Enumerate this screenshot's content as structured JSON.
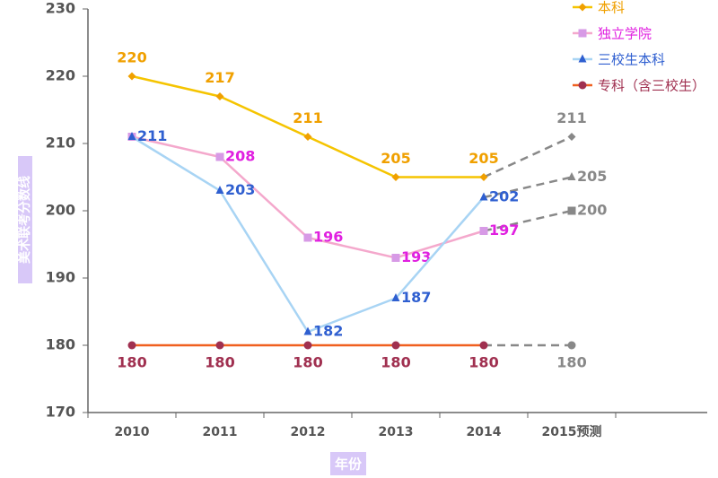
{
  "chart_data": {
    "type": "line",
    "y_label": "美术联考分数线",
    "x_label": "年份",
    "categories": [
      "2010",
      "2011",
      "2012",
      "2013",
      "2014",
      "2015预测"
    ],
    "ylim": [
      170,
      230
    ],
    "yticks": [
      170,
      180,
      190,
      200,
      210,
      220,
      230
    ],
    "legend": "top-right",
    "forecast_style": {
      "color": "#888888",
      "dashed": true
    },
    "series": [
      {
        "name": "本科",
        "color": "#f5c400",
        "marker_color": "#f0a000",
        "label_color": "#f0a000",
        "marker": "diamond",
        "label_position": "above",
        "values": [
          220,
          217,
          211,
          205,
          205,
          211
        ]
      },
      {
        "name": "独立学院",
        "color": "#f4a8cc",
        "marker_color": "#d79ae6",
        "label_color": "#e020e0",
        "marker": "square",
        "label_position": "right",
        "values": [
          211,
          208,
          196,
          193,
          197,
          200
        ],
        "value_labels": [
          null,
          "208",
          "196",
          "193",
          "197",
          "200"
        ]
      },
      {
        "name": "三校生本科",
        "color": "#a8d4f4",
        "marker_color": "#2f5fd0",
        "label_color": "#2f5fd0",
        "marker": "triangle",
        "label_position": "right",
        "values": [
          211,
          203,
          182,
          187,
          202,
          205
        ]
      },
      {
        "name": "专科（含三校生）",
        "color": "#f06020",
        "marker_color": "#a03050",
        "label_color": "#a03050",
        "marker": "circle",
        "label_position": "below",
        "values": [
          180,
          180,
          180,
          180,
          180,
          180
        ]
      }
    ]
  }
}
